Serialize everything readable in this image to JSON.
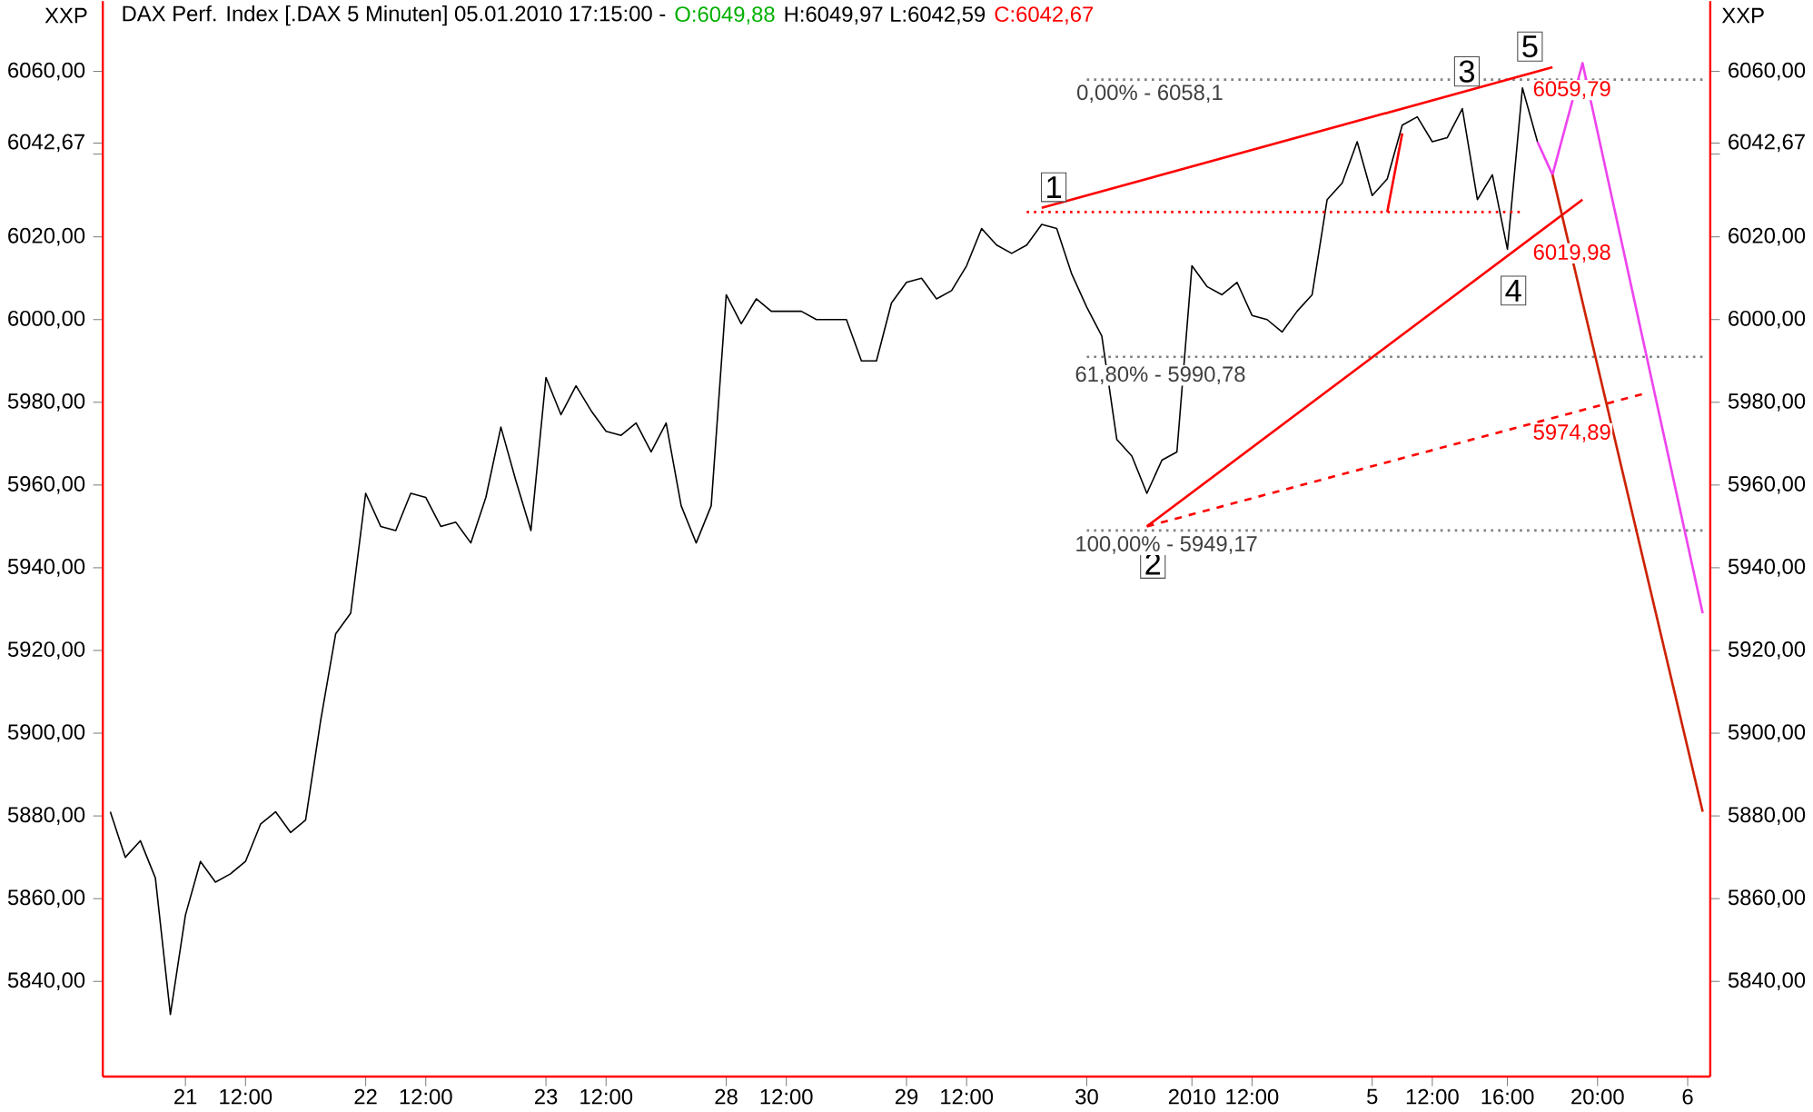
{
  "chart_data": {
    "type": "line",
    "title": "DAX Perf. Index [.DAX 5 Minuten] 05.01.2010 17:15:00 -",
    "categories": [
      null,
      null,
      null,
      null,
      null,
      "21",
      null,
      null,
      null,
      "12:00",
      null,
      null,
      null,
      null,
      null,
      null,
      null,
      "22",
      null,
      null,
      null,
      "12:00",
      null,
      null,
      null,
      null,
      null,
      null,
      null,
      "23",
      null,
      null,
      null,
      "12:00",
      null,
      null,
      null,
      null,
      null,
      null,
      null,
      "28",
      null,
      null,
      null,
      "12:00",
      null,
      null,
      null,
      null,
      null,
      null,
      null,
      "29",
      null,
      null,
      null,
      "12:00",
      null,
      null,
      null,
      null,
      null,
      null,
      null,
      "30",
      null,
      null,
      null,
      null,
      null,
      null,
      "2010",
      null,
      null,
      null,
      "12:00",
      null,
      null,
      null,
      null,
      null,
      null,
      null,
      "5",
      null,
      null,
      null,
      "12:00",
      null,
      null,
      null,
      null,
      "16:00",
      null,
      null,
      null,
      null,
      null,
      "20:00",
      null,
      null,
      null,
      null,
      null,
      "6",
      null
    ],
    "ylim": [
      5817,
      6077
    ],
    "y2lim": [
      5817,
      6077
    ],
    "yticks": [
      {
        "value": 5840,
        "label": "5840,00"
      },
      {
        "value": 5860,
        "label": "5860,00"
      },
      {
        "value": 5880,
        "label": "5880,00"
      },
      {
        "value": 5900,
        "label": "5900,00"
      },
      {
        "value": 5920,
        "label": "5920,00"
      },
      {
        "value": 5940,
        "label": "5940,00"
      },
      {
        "value": 5960,
        "label": "5960,00"
      },
      {
        "value": 5980,
        "label": "5980,00"
      },
      {
        "value": 6000,
        "label": "6000,00"
      },
      {
        "value": 6020,
        "label": "6020,00"
      },
      {
        "value": 6040,
        "label": null
      },
      {
        "value": 6042.67,
        "label": "6042,67"
      },
      {
        "value": 6060,
        "label": "6060,00"
      }
    ],
    "y2ticks": [
      {
        "value": 5840,
        "label": "5840,00"
      },
      {
        "value": 5860,
        "label": "5860,00"
      },
      {
        "value": 5880,
        "label": "5880,00"
      },
      {
        "value": 5900,
        "label": "5900,00"
      },
      {
        "value": 5920,
        "label": "5920,00"
      },
      {
        "value": 5940,
        "label": "5940,00"
      },
      {
        "value": 5960,
        "label": "5960,00"
      },
      {
        "value": 5980,
        "label": "5980,00"
      },
      {
        "value": 6000,
        "label": "6000,00"
      },
      {
        "value": 6020,
        "label": "6020,00"
      },
      {
        "value": 6040,
        "label": null
      },
      {
        "value": 6042.67,
        "label": "6042,67"
      },
      {
        "value": 6060,
        "label": "6060,00"
      }
    ],
    "series": [
      {
        "color": "#000000",
        "line_style": "solid",
        "values": [
          5881,
          5870,
          5874,
          5865,
          5832,
          5856,
          5869,
          5864,
          5866,
          5869,
          5878,
          5881,
          5876,
          5879,
          5903,
          5924,
          5929,
          5958,
          5950,
          5949,
          5958,
          5957,
          5950,
          5951,
          5946,
          5957,
          5974,
          5961,
          5949,
          5986,
          5977,
          5984,
          5978,
          5973,
          5972,
          5975,
          5968,
          5975,
          5955,
          5946,
          5955,
          6006,
          5999,
          6005,
          6002,
          6002,
          6002,
          6000,
          6000,
          6000,
          5990,
          5990,
          6004,
          6009,
          6010,
          6005,
          6007,
          6013,
          6022,
          6018,
          6016,
          6018,
          6023,
          6022,
          6011,
          6003,
          5996,
          5971,
          5967,
          5958,
          5966,
          5968,
          6013,
          6008,
          6006,
          6009,
          6001,
          6000,
          5997,
          6002,
          6006,
          6029,
          6033,
          6043,
          6030,
          6034,
          6047,
          6049,
          6043,
          6044,
          6051,
          6029,
          6035,
          6017,
          6056,
          6043,
          null,
          null,
          null,
          null,
          null,
          null,
          null,
          null,
          null,
          null,
          null
        ]
      },
      {
        "color": "#808080",
        "line_style": "dotted",
        "values": [
          null,
          null,
          null,
          null,
          null,
          null,
          null,
          null,
          null,
          null,
          null,
          null,
          null,
          null,
          null,
          null,
          null,
          null,
          null,
          null,
          null,
          null,
          null,
          null,
          null,
          null,
          null,
          null,
          null,
          null,
          null,
          null,
          null,
          null,
          null,
          null,
          null,
          null,
          null,
          null,
          null,
          null,
          null,
          null,
          null,
          null,
          null,
          null,
          null,
          null,
          null,
          null,
          null,
          null,
          null,
          null,
          null,
          null,
          null,
          null,
          null,
          null,
          null,
          null,
          null,
          6058,
          null,
          null,
          null,
          null,
          null,
          null,
          null,
          null,
          null,
          null,
          null,
          null,
          null,
          null,
          null,
          null,
          null,
          null,
          null,
          null,
          null,
          null,
          null,
          null,
          null,
          null,
          null,
          null,
          null,
          null,
          null,
          null,
          null,
          null,
          null,
          null,
          null,
          null,
          null,
          null,
          6058
        ]
      },
      {
        "color": "#808080",
        "line_style": "dotted",
        "values": [
          null,
          null,
          null,
          null,
          null,
          null,
          null,
          null,
          null,
          null,
          null,
          null,
          null,
          null,
          null,
          null,
          null,
          null,
          null,
          null,
          null,
          null,
          null,
          null,
          null,
          null,
          null,
          null,
          null,
          null,
          null,
          null,
          null,
          null,
          null,
          null,
          null,
          null,
          null,
          null,
          null,
          null,
          null,
          null,
          null,
          null,
          null,
          null,
          null,
          null,
          null,
          null,
          null,
          null,
          null,
          null,
          null,
          null,
          null,
          null,
          null,
          null,
          null,
          null,
          null,
          5991,
          null,
          null,
          null,
          null,
          null,
          null,
          null,
          null,
          null,
          null,
          null,
          null,
          null,
          null,
          null,
          null,
          null,
          null,
          null,
          null,
          null,
          null,
          null,
          null,
          null,
          null,
          null,
          null,
          null,
          null,
          null,
          null,
          null,
          null,
          null,
          null,
          null,
          null,
          null,
          null,
          5991
        ]
      },
      {
        "color": "#808080",
        "line_style": "dotted",
        "values": [
          null,
          null,
          null,
          null,
          null,
          null,
          null,
          null,
          null,
          null,
          null,
          null,
          null,
          null,
          null,
          null,
          null,
          null,
          null,
          null,
          null,
          null,
          null,
          null,
          null,
          null,
          null,
          null,
          null,
          null,
          null,
          null,
          null,
          null,
          null,
          null,
          null,
          null,
          null,
          null,
          null,
          null,
          null,
          null,
          null,
          null,
          null,
          null,
          null,
          null,
          null,
          null,
          null,
          null,
          null,
          null,
          null,
          null,
          null,
          null,
          null,
          null,
          null,
          null,
          null,
          5949,
          null,
          null,
          null,
          null,
          null,
          null,
          null,
          null,
          null,
          null,
          null,
          null,
          null,
          null,
          null,
          null,
          null,
          null,
          null,
          null,
          null,
          null,
          null,
          null,
          null,
          null,
          null,
          null,
          null,
          null,
          null,
          null,
          null,
          null,
          null,
          null,
          null,
          null,
          null,
          null,
          5949
        ]
      },
      {
        "color": "#ff0000",
        "line_style": "dotted",
        "values": [
          null,
          null,
          null,
          null,
          null,
          null,
          null,
          null,
          null,
          null,
          null,
          null,
          null,
          null,
          null,
          null,
          null,
          null,
          null,
          null,
          null,
          null,
          null,
          null,
          null,
          null,
          null,
          null,
          null,
          null,
          null,
          null,
          null,
          null,
          null,
          null,
          null,
          null,
          null,
          null,
          null,
          null,
          null,
          null,
          null,
          null,
          null,
          null,
          null,
          null,
          null,
          null,
          null,
          null,
          null,
          null,
          null,
          null,
          null,
          null,
          null,
          6026,
          null,
          null,
          null,
          null,
          null,
          null,
          null,
          null,
          null,
          null,
          null,
          null,
          null,
          null,
          null,
          null,
          null,
          null,
          null,
          null,
          null,
          null,
          null,
          null,
          null,
          null,
          null,
          null,
          null,
          null,
          null,
          null,
          6026,
          null,
          null,
          null,
          null,
          null,
          null,
          null,
          null,
          null,
          null,
          null,
          null
        ]
      },
      {
        "color": "#ff0000",
        "line_style": "solid",
        "values": [
          null,
          null,
          null,
          null,
          null,
          null,
          null,
          null,
          null,
          null,
          null,
          null,
          null,
          null,
          null,
          null,
          null,
          null,
          null,
          null,
          null,
          null,
          null,
          null,
          null,
          null,
          null,
          null,
          null,
          null,
          null,
          null,
          null,
          null,
          null,
          null,
          null,
          null,
          null,
          null,
          null,
          null,
          null,
          null,
          null,
          null,
          null,
          null,
          null,
          null,
          null,
          null,
          null,
          null,
          null,
          null,
          null,
          null,
          null,
          null,
          null,
          null,
          6027,
          null,
          null,
          null,
          null,
          null,
          null,
          null,
          null,
          null,
          null,
          null,
          null,
          null,
          null,
          null,
          null,
          null,
          null,
          null,
          null,
          null,
          null,
          null,
          null,
          null,
          null,
          null,
          null,
          null,
          null,
          null,
          null,
          null,
          6061,
          null,
          null,
          null,
          null,
          null,
          null,
          null,
          null,
          null,
          null
        ]
      },
      {
        "color": "#ff0000",
        "line_style": "solid",
        "values": [
          null,
          null,
          null,
          null,
          null,
          null,
          null,
          null,
          null,
          null,
          null,
          null,
          null,
          null,
          null,
          null,
          null,
          null,
          null,
          null,
          null,
          null,
          null,
          null,
          null,
          null,
          null,
          null,
          null,
          null,
          null,
          null,
          null,
          null,
          null,
          null,
          null,
          null,
          null,
          null,
          null,
          null,
          null,
          null,
          null,
          null,
          null,
          null,
          null,
          null,
          null,
          null,
          null,
          null,
          null,
          null,
          null,
          null,
          null,
          null,
          null,
          null,
          null,
          null,
          null,
          null,
          null,
          null,
          null,
          5950,
          null,
          null,
          null,
          null,
          null,
          null,
          null,
          null,
          null,
          null,
          null,
          null,
          null,
          null,
          null,
          null,
          null,
          null,
          null,
          null,
          null,
          null,
          null,
          null,
          null,
          null,
          null,
          null,
          6029,
          null,
          null,
          null,
          null,
          null,
          null,
          null,
          null
        ]
      },
      {
        "color": "#ff0000",
        "line_style": "dashed",
        "values": [
          null,
          null,
          null,
          null,
          null,
          null,
          null,
          null,
          null,
          null,
          null,
          null,
          null,
          null,
          null,
          null,
          null,
          null,
          null,
          null,
          null,
          null,
          null,
          null,
          null,
          null,
          null,
          null,
          null,
          null,
          null,
          null,
          null,
          null,
          null,
          null,
          null,
          null,
          null,
          null,
          null,
          null,
          null,
          null,
          null,
          null,
          null,
          null,
          null,
          null,
          null,
          null,
          null,
          null,
          null,
          null,
          null,
          null,
          null,
          null,
          null,
          null,
          null,
          null,
          null,
          null,
          null,
          null,
          null,
          5950,
          null,
          null,
          null,
          null,
          null,
          null,
          null,
          null,
          null,
          null,
          null,
          null,
          null,
          null,
          null,
          null,
          null,
          null,
          null,
          null,
          null,
          null,
          null,
          null,
          null,
          null,
          null,
          null,
          null,
          null,
          null,
          null,
          5982,
          null,
          null,
          null,
          null
        ]
      },
      {
        "color": "#ff0000",
        "line_style": "solid",
        "values": [
          null,
          null,
          null,
          null,
          null,
          null,
          null,
          null,
          null,
          null,
          null,
          null,
          null,
          null,
          null,
          null,
          null,
          null,
          null,
          null,
          null,
          null,
          null,
          null,
          null,
          null,
          null,
          null,
          null,
          null,
          null,
          null,
          null,
          null,
          null,
          null,
          null,
          null,
          null,
          null,
          null,
          null,
          null,
          null,
          null,
          null,
          null,
          null,
          null,
          null,
          null,
          null,
          null,
          null,
          null,
          null,
          null,
          null,
          null,
          null,
          null,
          null,
          null,
          null,
          null,
          null,
          null,
          null,
          null,
          null,
          null,
          null,
          null,
          null,
          null,
          null,
          null,
          null,
          null,
          null,
          null,
          null,
          null,
          null,
          null,
          6026,
          6045,
          null,
          null,
          null,
          null,
          null,
          null,
          null,
          null,
          null,
          null,
          null,
          null,
          null,
          null,
          null,
          null,
          null,
          null,
          null,
          null
        ]
      },
      {
        "color": "#ee44ee",
        "line_style": "solid",
        "values": [
          null,
          null,
          null,
          null,
          null,
          null,
          null,
          null,
          null,
          null,
          null,
          null,
          null,
          null,
          null,
          null,
          null,
          null,
          null,
          null,
          null,
          null,
          null,
          null,
          null,
          null,
          null,
          null,
          null,
          null,
          null,
          null,
          null,
          null,
          null,
          null,
          null,
          null,
          null,
          null,
          null,
          null,
          null,
          null,
          null,
          null,
          null,
          null,
          null,
          null,
          null,
          null,
          null,
          null,
          null,
          null,
          null,
          null,
          null,
          null,
          null,
          null,
          null,
          null,
          null,
          null,
          null,
          null,
          null,
          null,
          null,
          null,
          null,
          null,
          null,
          null,
          null,
          null,
          null,
          null,
          null,
          null,
          null,
          null,
          null,
          null,
          null,
          null,
          null,
          null,
          null,
          null,
          null,
          null,
          null,
          6043,
          6035,
          null,
          6062,
          null,
          null,
          null,
          null,
          null,
          null,
          null,
          5929
        ]
      },
      {
        "color": "#cc2200",
        "line_style": "solid",
        "values": [
          null,
          null,
          null,
          null,
          null,
          null,
          null,
          null,
          null,
          null,
          null,
          null,
          null,
          null,
          null,
          null,
          null,
          null,
          null,
          null,
          null,
          null,
          null,
          null,
          null,
          null,
          null,
          null,
          null,
          null,
          null,
          null,
          null,
          null,
          null,
          null,
          null,
          null,
          null,
          null,
          null,
          null,
          null,
          null,
          null,
          null,
          null,
          null,
          null,
          null,
          null,
          null,
          null,
          null,
          null,
          null,
          null,
          null,
          null,
          null,
          null,
          null,
          null,
          null,
          null,
          null,
          null,
          null,
          null,
          null,
          null,
          null,
          null,
          null,
          null,
          null,
          null,
          null,
          null,
          null,
          null,
          null,
          null,
          null,
          null,
          null,
          null,
          null,
          null,
          null,
          null,
          null,
          null,
          null,
          null,
          null,
          6035,
          null,
          null,
          null,
          null,
          null,
          null,
          null,
          null,
          null,
          5881
        ]
      }
    ],
    "annotations": [
      "O:6049,88",
      "H:6049,97 L:6042,59",
      "C:6042,67",
      "XXP",
      "XXP",
      "1",
      "2",
      "3",
      "4",
      "5",
      "6059,79",
      "6019,98",
      "5974,89",
      "0,00% - 6058,1",
      "61,80% - 5990,78",
      "100,00% - 5949,17"
    ]
  }
}
